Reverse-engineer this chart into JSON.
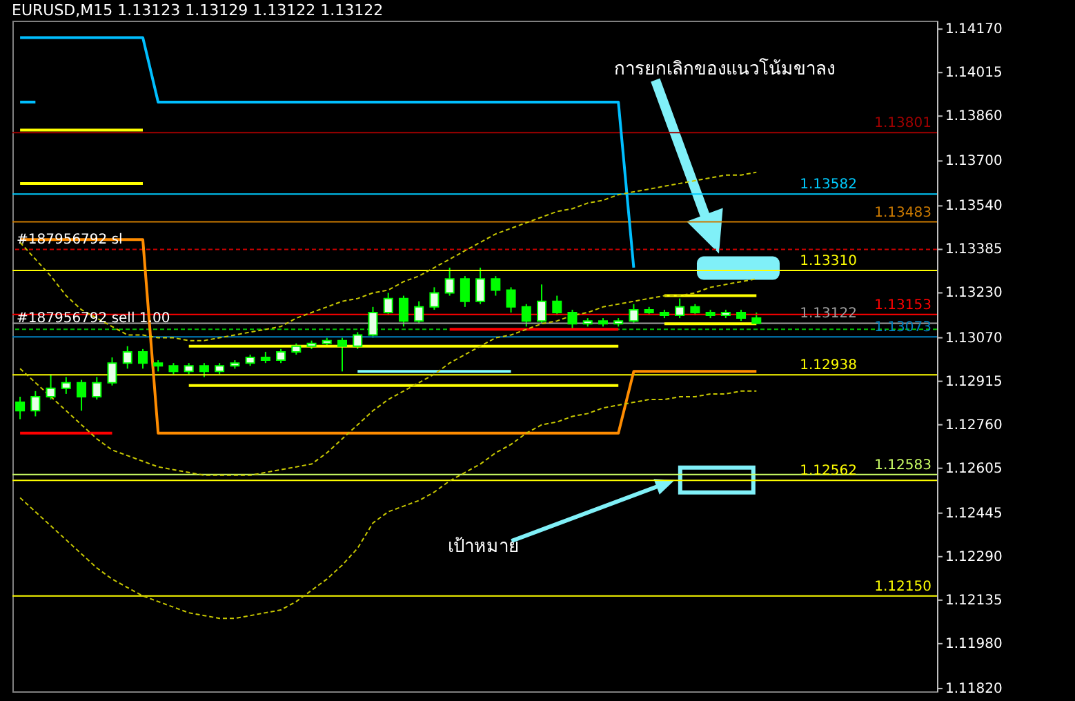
{
  "chart_data": {
    "type": "candlestick",
    "title": "EURUSD,M15  1.13123 1.13129 1.13122 1.13122",
    "categories": [
      null,
      null,
      null,
      null,
      null,
      null,
      null,
      null,
      null,
      null,
      null,
      null,
      null,
      null,
      null,
      null,
      null,
      null,
      null,
      null,
      null,
      null,
      null,
      null,
      null,
      null,
      null,
      null,
      null,
      null,
      null,
      null,
      null,
      null,
      null,
      null,
      null,
      null,
      null,
      null,
      null,
      null,
      null,
      null,
      null,
      null,
      null,
      null,
      null
    ],
    "ylim": [
      1.1181,
      1.142
    ],
    "tick_labels": "y",
    "yticks": [
      {
        "value": 1.1417,
        "label": "1.14170"
      },
      {
        "value": 1.14015,
        "label": "1.14015"
      },
      {
        "value": 1.1386,
        "label": "1.13860"
      },
      {
        "value": 1.137,
        "label": "1.13700"
      },
      {
        "value": 1.1354,
        "label": "1.13540"
      },
      {
        "value": 1.13385,
        "label": "1.13385"
      },
      {
        "value": 1.1323,
        "label": "1.13230"
      },
      {
        "value": 1.1307,
        "label": "1.13070"
      },
      {
        "value": 1.12915,
        "label": "1.12915"
      },
      {
        "value": 1.1276,
        "label": "1.12760"
      },
      {
        "value": 1.12605,
        "label": "1.12605"
      },
      {
        "value": 1.12445,
        "label": "1.12445"
      },
      {
        "value": 1.1229,
        "label": "1.12290"
      },
      {
        "value": 1.12135,
        "label": "1.12135"
      },
      {
        "value": 1.1198,
        "label": "1.11980"
      },
      {
        "value": 1.1182,
        "label": "1.11820"
      }
    ],
    "series": [
      {
        "type": "line",
        "color": "#00bfff",
        "values": [
          1.1414,
          1.1414,
          1.1414,
          1.1414,
          1.1414,
          1.1414,
          1.1414,
          1.1414,
          1.1414,
          1.1391,
          1.1391,
          1.1391,
          1.1391,
          1.1391,
          1.1391,
          1.1391,
          1.1391,
          1.1391,
          1.1391,
          1.1391,
          1.1391,
          1.1391,
          1.1391,
          1.1391,
          1.1391,
          1.1391,
          1.1391,
          1.1391,
          1.1391,
          1.1391,
          1.1391,
          1.1391,
          1.1391,
          1.1391,
          1.1391,
          1.1391,
          1.1391,
          1.1391,
          1.1391,
          1.1391,
          1.1332,
          null,
          null,
          null,
          null,
          null,
          null,
          null,
          null
        ]
      },
      {
        "type": "line",
        "color": "#00bfff",
        "values": [
          1.1391,
          1.1391,
          null,
          null,
          null,
          null,
          null,
          null,
          null,
          null,
          null,
          null,
          null,
          null,
          null,
          null,
          null,
          null,
          null,
          null,
          null,
          null,
          null,
          null,
          null,
          null,
          null,
          null,
          null,
          null,
          null,
          null,
          null,
          null,
          null,
          null,
          null,
          null,
          null,
          null,
          null,
          null,
          null,
          null,
          null,
          null,
          null,
          null,
          null
        ]
      },
      {
        "type": "line",
        "color": "#ff8c00",
        "values": [
          1.1342,
          1.1342,
          1.1342,
          1.1342,
          1.1342,
          1.1342,
          1.1342,
          1.1342,
          1.1342,
          1.1273,
          1.1273,
          1.1273,
          1.1273,
          1.1273,
          1.1273,
          1.1273,
          1.1273,
          1.1273,
          1.1273,
          1.1273,
          1.1273,
          1.1273,
          1.1273,
          1.1273,
          1.1273,
          1.1273,
          1.1273,
          1.1273,
          1.1273,
          1.1273,
          1.1273,
          1.1273,
          1.1273,
          1.1273,
          1.1273,
          1.1273,
          1.1273,
          1.1273,
          1.1273,
          1.1273,
          1.1295,
          1.1295,
          1.1295,
          1.1295,
          1.1295,
          1.1295,
          1.1295,
          1.1295,
          1.1295
        ]
      },
      {
        "type": "line",
        "color": "#ffff00",
        "values": [
          1.1381,
          1.1381,
          1.1381,
          1.1381,
          1.1381,
          1.1381,
          1.1381,
          1.1381,
          1.1381,
          null,
          null,
          null,
          null,
          null,
          null,
          null,
          null,
          null,
          null,
          null,
          null,
          null,
          null,
          null,
          null,
          null,
          null,
          null,
          null,
          null,
          null,
          null,
          null,
          null,
          null,
          null,
          null,
          null,
          null,
          null,
          null,
          null,
          null,
          null,
          null,
          null,
          null,
          null,
          null
        ]
      },
      {
        "type": "line",
        "color": "#ffff00",
        "values": [
          1.1362,
          1.1362,
          1.1362,
          1.1362,
          1.1362,
          1.1362,
          1.1362,
          1.1362,
          1.1362,
          null,
          null,
          null,
          null,
          null,
          null,
          null,
          null,
          null,
          null,
          null,
          null,
          null,
          null,
          null,
          null,
          null,
          null,
          null,
          null,
          null,
          null,
          null,
          null,
          null,
          null,
          null,
          null,
          null,
          null,
          null,
          null,
          null,
          null,
          null,
          null,
          null,
          null,
          null,
          null
        ]
      },
      {
        "type": "line",
        "color": "#ffff00",
        "values": [
          null,
          null,
          null,
          null,
          null,
          null,
          null,
          null,
          null,
          null,
          null,
          1.129,
          1.129,
          1.129,
          1.129,
          1.129,
          1.129,
          1.129,
          1.129,
          1.129,
          1.129,
          1.129,
          1.129,
          1.129,
          1.129,
          1.129,
          1.129,
          1.129,
          1.129,
          1.129,
          1.129,
          1.129,
          1.129,
          1.129,
          1.129,
          1.129,
          1.129,
          1.129,
          1.129,
          1.129,
          null,
          null,
          null,
          null,
          null,
          null,
          null,
          null,
          null
        ]
      },
      {
        "type": "line",
        "color": "#ffff00",
        "values": [
          null,
          null,
          null,
          null,
          null,
          null,
          null,
          null,
          null,
          null,
          null,
          1.1304,
          1.1304,
          1.1304,
          1.1304,
          1.1304,
          1.1304,
          1.1304,
          1.1304,
          1.1304,
          1.1304,
          1.1304,
          1.1304,
          1.1304,
          1.1304,
          1.1304,
          1.1304,
          1.1304,
          1.1304,
          1.1304,
          1.1304,
          1.1304,
          1.1304,
          1.1304,
          1.1304,
          1.1304,
          1.1304,
          1.1304,
          1.1304,
          1.1304,
          null,
          null,
          null,
          null,
          null,
          null,
          null,
          null,
          null
        ]
      },
      {
        "type": "line",
        "color": "#ffff00",
        "values": [
          null,
          null,
          null,
          null,
          null,
          null,
          null,
          null,
          null,
          null,
          null,
          null,
          null,
          null,
          null,
          null,
          null,
          null,
          null,
          null,
          null,
          null,
          null,
          null,
          null,
          null,
          null,
          null,
          null,
          null,
          null,
          null,
          null,
          null,
          null,
          null,
          null,
          null,
          null,
          null,
          null,
          null,
          1.1322,
          1.1322,
          1.1322,
          1.1322,
          1.1322,
          1.1322,
          1.1322
        ]
      },
      {
        "type": "line",
        "color": "#ffff00",
        "values": [
          null,
          null,
          null,
          null,
          null,
          null,
          null,
          null,
          null,
          null,
          null,
          null,
          null,
          null,
          null,
          null,
          null,
          null,
          null,
          null,
          null,
          null,
          null,
          null,
          null,
          null,
          null,
          null,
          null,
          null,
          null,
          null,
          null,
          null,
          null,
          null,
          null,
          null,
          null,
          null,
          null,
          null,
          1.1312,
          1.1312,
          1.1312,
          1.1312,
          1.1312,
          1.1312,
          1.1312
        ]
      },
      {
        "type": "line",
        "color": "#80ffff",
        "values": [
          null,
          null,
          null,
          null,
          null,
          null,
          null,
          null,
          null,
          null,
          null,
          null,
          null,
          null,
          null,
          null,
          null,
          null,
          null,
          null,
          null,
          null,
          1.1295,
          1.1295,
          1.1295,
          1.1295,
          1.1295,
          1.1295,
          1.1295,
          1.1295,
          1.1295,
          1.1295,
          1.1295,
          null,
          null,
          null,
          null,
          null,
          null,
          null,
          null,
          null,
          null,
          null,
          null,
          null,
          null,
          null,
          null
        ]
      },
      {
        "type": "line",
        "color": "#ff0000",
        "values": [
          1.1273,
          1.1273,
          1.1273,
          1.1273,
          1.1273,
          1.1273,
          1.1273,
          null,
          null,
          null,
          null,
          null,
          null,
          null,
          null,
          null,
          null,
          null,
          null,
          null,
          null,
          null,
          null,
          null,
          null,
          null,
          null,
          null,
          null,
          null,
          null,
          null,
          null,
          null,
          null,
          null,
          null,
          null,
          null,
          null,
          null,
          null,
          null,
          null,
          null,
          null,
          null,
          null,
          null
        ]
      },
      {
        "type": "line",
        "color": "#ff0000",
        "values": [
          null,
          null,
          null,
          null,
          null,
          null,
          null,
          null,
          null,
          null,
          null,
          null,
          null,
          null,
          null,
          null,
          null,
          null,
          null,
          null,
          null,
          null,
          null,
          null,
          null,
          null,
          null,
          null,
          1.131,
          1.131,
          1.131,
          1.131,
          1.131,
          1.131,
          1.131,
          1.131,
          1.131,
          1.131,
          1.131,
          1.131,
          null,
          null,
          null,
          null,
          null,
          null,
          null,
          null,
          null
        ]
      },
      {
        "type": "line",
        "color": "#c8c800",
        "line_style": "dashed",
        "values": [
          1.1341,
          1.1335,
          1.1329,
          1.1322,
          1.1317,
          1.1314,
          1.1311,
          1.1308,
          1.1308,
          1.1307,
          1.1307,
          1.1306,
          1.1306,
          1.1307,
          1.1308,
          1.1309,
          1.131,
          1.1311,
          1.1314,
          1.1316,
          1.1318,
          1.132,
          1.1321,
          1.1323,
          1.1324,
          1.1327,
          1.1329,
          1.1332,
          1.1335,
          1.1338,
          1.1341,
          1.1344,
          1.1346,
          1.1348,
          1.135,
          1.1352,
          1.1353,
          1.1355,
          1.1356,
          1.1358,
          1.1359,
          1.136,
          1.1361,
          1.1362,
          1.1363,
          1.1364,
          1.1365,
          1.1365,
          1.1366
        ]
      },
      {
        "type": "line",
        "color": "#c8c800",
        "line_style": "dashed",
        "values": [
          1.1296,
          1.1291,
          1.1286,
          1.1281,
          1.1276,
          1.1271,
          1.1267,
          1.1265,
          1.1263,
          1.1261,
          1.126,
          1.1259,
          1.1258,
          1.1258,
          1.1258,
          1.1258,
          1.1259,
          1.126,
          1.1261,
          1.1262,
          1.1266,
          1.1271,
          1.1276,
          1.1281,
          1.1285,
          1.1288,
          1.1291,
          1.1294,
          1.1298,
          1.1301,
          1.1304,
          1.1307,
          1.1308,
          1.131,
          1.1312,
          1.1313,
          1.1315,
          1.1316,
          1.1318,
          1.1319,
          1.132,
          1.1321,
          1.1322,
          1.1322,
          1.1323,
          1.1325,
          1.1326,
          1.1327,
          1.1328
        ]
      },
      {
        "type": "line",
        "color": "#c8c800",
        "line_style": "dashed",
        "values": [
          1.125,
          1.1245,
          1.124,
          1.1235,
          1.123,
          1.1225,
          1.1221,
          1.1218,
          1.1215,
          1.1213,
          1.1211,
          1.1209,
          1.1208,
          1.1207,
          1.1207,
          1.1208,
          1.1209,
          1.121,
          1.1213,
          1.1217,
          1.1221,
          1.1226,
          1.1232,
          1.1241,
          1.1245,
          1.1247,
          1.1249,
          1.1252,
          1.1256,
          1.1259,
          1.1262,
          1.1266,
          1.1269,
          1.1273,
          1.1276,
          1.1277,
          1.1279,
          1.128,
          1.1282,
          1.1283,
          1.1284,
          1.1285,
          1.1285,
          1.1286,
          1.1286,
          1.1287,
          1.1287,
          1.1288,
          1.1288
        ]
      },
      {
        "type": "candlestick",
        "color": "#00ff00",
        "ohlc": [
          [
            1.1284,
            1.1286,
            1.1278,
            1.1281
          ],
          [
            1.1281,
            1.1288,
            1.1279,
            1.1286
          ],
          [
            1.1286,
            1.1294,
            1.1285,
            1.1289
          ],
          [
            1.1289,
            1.1293,
            1.1287,
            1.1291
          ],
          [
            1.1291,
            1.1292,
            1.1281,
            1.1286
          ],
          [
            1.1286,
            1.1293,
            1.1285,
            1.1291
          ],
          [
            1.1291,
            1.13,
            1.129,
            1.1298
          ],
          [
            1.1298,
            1.1304,
            1.1296,
            1.1302
          ],
          [
            1.1302,
            1.1303,
            1.1296,
            1.1298
          ],
          [
            1.1298,
            1.1299,
            1.1295,
            1.1297
          ],
          [
            1.1297,
            1.1298,
            1.1294,
            1.1295
          ],
          [
            1.1295,
            1.1298,
            1.1294,
            1.1297
          ],
          [
            1.1297,
            1.1298,
            1.1293,
            1.1295
          ],
          [
            1.1295,
            1.1298,
            1.1294,
            1.1297
          ],
          [
            1.1297,
            1.1299,
            1.1296,
            1.1298
          ],
          [
            1.1298,
            1.1301,
            1.1297,
            1.13
          ],
          [
            1.13,
            1.1302,
            1.1298,
            1.1299
          ],
          [
            1.1299,
            1.1303,
            1.1298,
            1.1302
          ],
          [
            1.1302,
            1.1305,
            1.1301,
            1.1304
          ],
          [
            1.1304,
            1.1306,
            1.1303,
            1.1305
          ],
          [
            1.1305,
            1.1307,
            1.1304,
            1.1306
          ],
          [
            1.1306,
            1.1307,
            1.1295,
            1.1304
          ],
          [
            1.1304,
            1.1309,
            1.1303,
            1.1308
          ],
          [
            1.1308,
            1.1318,
            1.1307,
            1.1316
          ],
          [
            1.1316,
            1.1323,
            1.1315,
            1.1321
          ],
          [
            1.1321,
            1.1322,
            1.1311,
            1.1313
          ],
          [
            1.1313,
            1.132,
            1.1312,
            1.1318
          ],
          [
            1.1318,
            1.1325,
            1.1317,
            1.1323
          ],
          [
            1.1323,
            1.1332,
            1.1322,
            1.1328
          ],
          [
            1.1328,
            1.1329,
            1.1318,
            1.132
          ],
          [
            1.132,
            1.1332,
            1.1319,
            1.1328
          ],
          [
            1.1328,
            1.1329,
            1.1322,
            1.1324
          ],
          [
            1.1324,
            1.1325,
            1.1316,
            1.1318
          ],
          [
            1.1318,
            1.1319,
            1.1311,
            1.1313
          ],
          [
            1.1313,
            1.1326,
            1.1312,
            1.132
          ],
          [
            1.132,
            1.1322,
            1.1315,
            1.1316
          ],
          [
            1.1316,
            1.1317,
            1.131,
            1.1312
          ],
          [
            1.1312,
            1.1314,
            1.1311,
            1.1313
          ],
          [
            1.1313,
            1.1314,
            1.1311,
            1.1312
          ],
          [
            1.1312,
            1.1314,
            1.1311,
            1.1313
          ],
          [
            1.1313,
            1.1319,
            1.1312,
            1.1317
          ],
          [
            1.1317,
            1.1318,
            1.1315,
            1.1316
          ],
          [
            1.1316,
            1.1317,
            1.1314,
            1.1315
          ],
          [
            1.1315,
            1.1321,
            1.1314,
            1.1318
          ],
          [
            1.1318,
            1.1319,
            1.1315,
            1.1316
          ],
          [
            1.1316,
            1.1317,
            1.1314,
            1.1315
          ],
          [
            1.1315,
            1.1317,
            1.1314,
            1.1316
          ],
          [
            1.1316,
            1.1317,
            1.1313,
            1.1314
          ],
          [
            1.1314,
            1.1316,
            1.1312,
            1.13122
          ]
        ]
      }
    ],
    "ref_lines": [
      {
        "axis": "y",
        "value": 1.13801,
        "label": "1.13801",
        "color": "#a00000"
      },
      {
        "axis": "y",
        "value": 1.13582,
        "label": "1.13582",
        "color": "#00ccff"
      },
      {
        "axis": "y",
        "value": 1.13483,
        "label": "1.13483",
        "color": "#cc7a00"
      },
      {
        "axis": "y",
        "value": 1.13385,
        "color": "#cc0000",
        "line_style": "dashed"
      },
      {
        "axis": "y",
        "value": 1.1331,
        "label": "1.13310",
        "color": "#ffff00"
      },
      {
        "axis": "y",
        "value": 1.13153,
        "label": "1.13153",
        "color": "#ff0000"
      },
      {
        "axis": "y",
        "value": 1.13122,
        "label": "1.13122",
        "color": "#a0a0a0"
      },
      {
        "axis": "y",
        "value": 1.131,
        "color": "#00c000",
        "line_style": "dashed"
      },
      {
        "axis": "y",
        "value": 1.13073,
        "label": "1.13073",
        "color": "#0080c0"
      },
      {
        "axis": "y",
        "value": 1.12938,
        "label": "1.12938",
        "color": "#ffff00"
      },
      {
        "axis": "y",
        "value": 1.12583,
        "label": "1.12583",
        "color": "#ccff66"
      },
      {
        "axis": "y",
        "value": 1.12562,
        "label": "1.12562",
        "color": "#ffff00"
      },
      {
        "axis": "y",
        "value": 1.1215,
        "label": "1.12150",
        "color": "#ffff00"
      }
    ],
    "annotations": [
      "การยกเลิกของแนวโน้มขาลง",
      "เป้าหมาย",
      {
        "text": "#187956792 sl",
        "y": 1.1342
      },
      {
        "text": "#187956792 sell 1.00",
        "y": 1.1314
      }
    ]
  }
}
